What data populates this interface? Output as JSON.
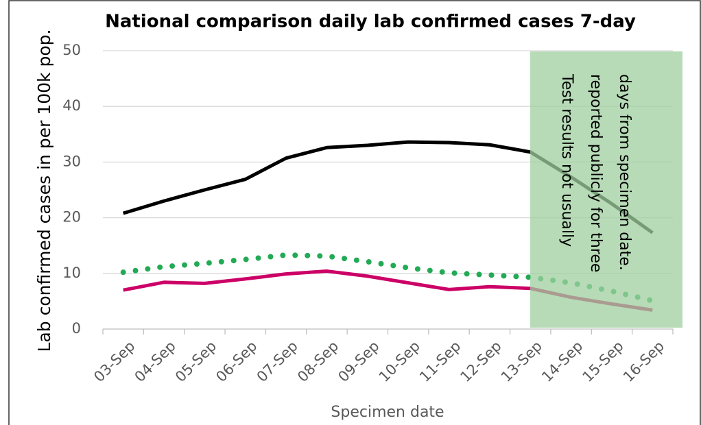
{
  "chart_data": {
    "type": "line",
    "title": "National comparison daily lab confirmed cases 7-day",
    "x_label": "Specimen date",
    "y_label": "Lab confirmed cases in per 100k pop.",
    "categories": [
      "03-Sep",
      "04-Sep",
      "05-Sep",
      "06-Sep",
      "07-Sep",
      "08-Sep",
      "09-Sep",
      "10-Sep",
      "11-Sep",
      "12-Sep",
      "13-Sep",
      "14-Sep",
      "15-Sep",
      "16-Sep"
    ],
    "series": [
      {
        "color": "#000000",
        "style": "solid",
        "values": [
          20.8,
          23.0,
          25.0,
          26.9,
          30.7,
          32.6,
          33.0,
          33.6,
          33.5,
          33.1,
          31.8,
          27.3,
          22.5,
          17.3
        ]
      },
      {
        "color": "#cc0066",
        "style": "solid",
        "values": [
          7.0,
          8.4,
          8.2,
          9.0,
          9.9,
          10.4,
          9.5,
          8.3,
          7.1,
          7.6,
          7.3,
          5.7,
          4.5,
          3.4
        ]
      },
      {
        "color": "#22aa55",
        "style": "dotted",
        "values": [
          10.2,
          11.2,
          11.8,
          12.5,
          13.3,
          13.1,
          12.1,
          11.0,
          10.1,
          9.7,
          9.3,
          8.3,
          6.8,
          5.1
        ]
      }
    ],
    "ylim": [
      0,
      50
    ],
    "yticks": [
      0,
      10,
      20,
      30,
      40,
      50
    ],
    "grid": true,
    "annotation": [
      "Test results not usually",
      "reported publicly for three",
      "days from specimen date."
    ]
  }
}
